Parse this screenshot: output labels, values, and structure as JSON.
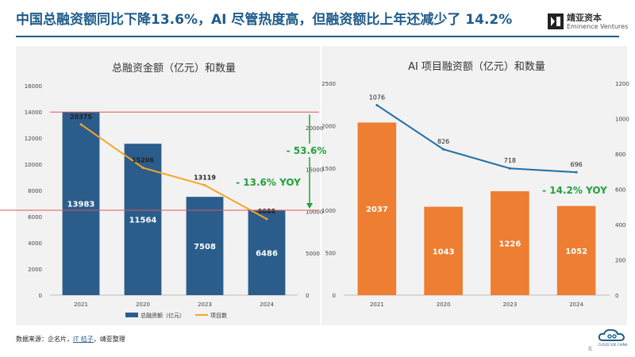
{
  "header": {
    "title": "中国总融资额同比下降13.6%，AI 尽管热度高，但融资额比上年还减少了 14.2%",
    "logo_cn": "靖亚资本",
    "logo_en": "Eminence Ventures"
  },
  "footer": {
    "source_prefix": "数据来源：企名片，",
    "source_link": "IT 桔子",
    "source_suffix": "，靖亚整理",
    "page_number": "6",
    "badge_text": "CLOUD 100 CHINA"
  },
  "colors": {
    "title": "#1f5c8b",
    "bar_blue": "#2a5d8c",
    "bar_orange": "#ee7e32",
    "line_orange": "#f5a623",
    "line_blue": "#1f6fa8",
    "red_line": "#e05555",
    "green": "#22a03c"
  },
  "chart_data": [
    {
      "type": "bar",
      "title": "总融资金额（亿元）和数量",
      "categories": [
        "2021",
        "2020",
        "2023",
        "2024"
      ],
      "series": [
        {
          "name": "总融资额（亿元）",
          "axis": "left",
          "type": "bar",
          "values": [
            13983,
            11564,
            7508,
            6486
          ]
        },
        {
          "name": "项目数",
          "axis": "right",
          "type": "line",
          "values": [
            20375,
            15206,
            13119,
            9088
          ]
        }
      ],
      "y_left": {
        "ylim": [
          0,
          16000
        ],
        "ticks": [
          "0",
          "2000",
          "4000",
          "6000",
          "8000",
          "10000",
          "12000",
          "14000",
          "16000"
        ]
      },
      "y_right": {
        "ylim": [
          0,
          25000
        ],
        "ticks": [
          "0",
          "5000",
          "10000",
          "15000",
          "20000"
        ]
      },
      "legend": "bottom",
      "annotations": [
        "- 53.6%",
        "- 13.6% YOY"
      ]
    },
    {
      "type": "bar",
      "title": "AI 项目融资额（亿元）和数量",
      "categories": [
        "2021",
        "2020",
        "2023",
        "2024"
      ],
      "series": [
        {
          "axis": "left",
          "type": "bar",
          "values": [
            2037,
            1043,
            1226,
            1052
          ]
        },
        {
          "axis": "right",
          "type": "line",
          "values": [
            1076,
            826,
            718,
            696
          ]
        }
      ],
      "y_left": {
        "ylim": [
          0,
          2500
        ],
        "ticks": [
          "0",
          "500",
          "1000",
          "1500",
          "2000",
          "2500"
        ]
      },
      "y_right": {
        "ylim": [
          0,
          1200
        ],
        "ticks": [
          "0",
          "200",
          "400",
          "600",
          "800",
          "1000",
          "1200"
        ]
      },
      "annotations": [
        "- 14.2% YOY"
      ]
    }
  ]
}
